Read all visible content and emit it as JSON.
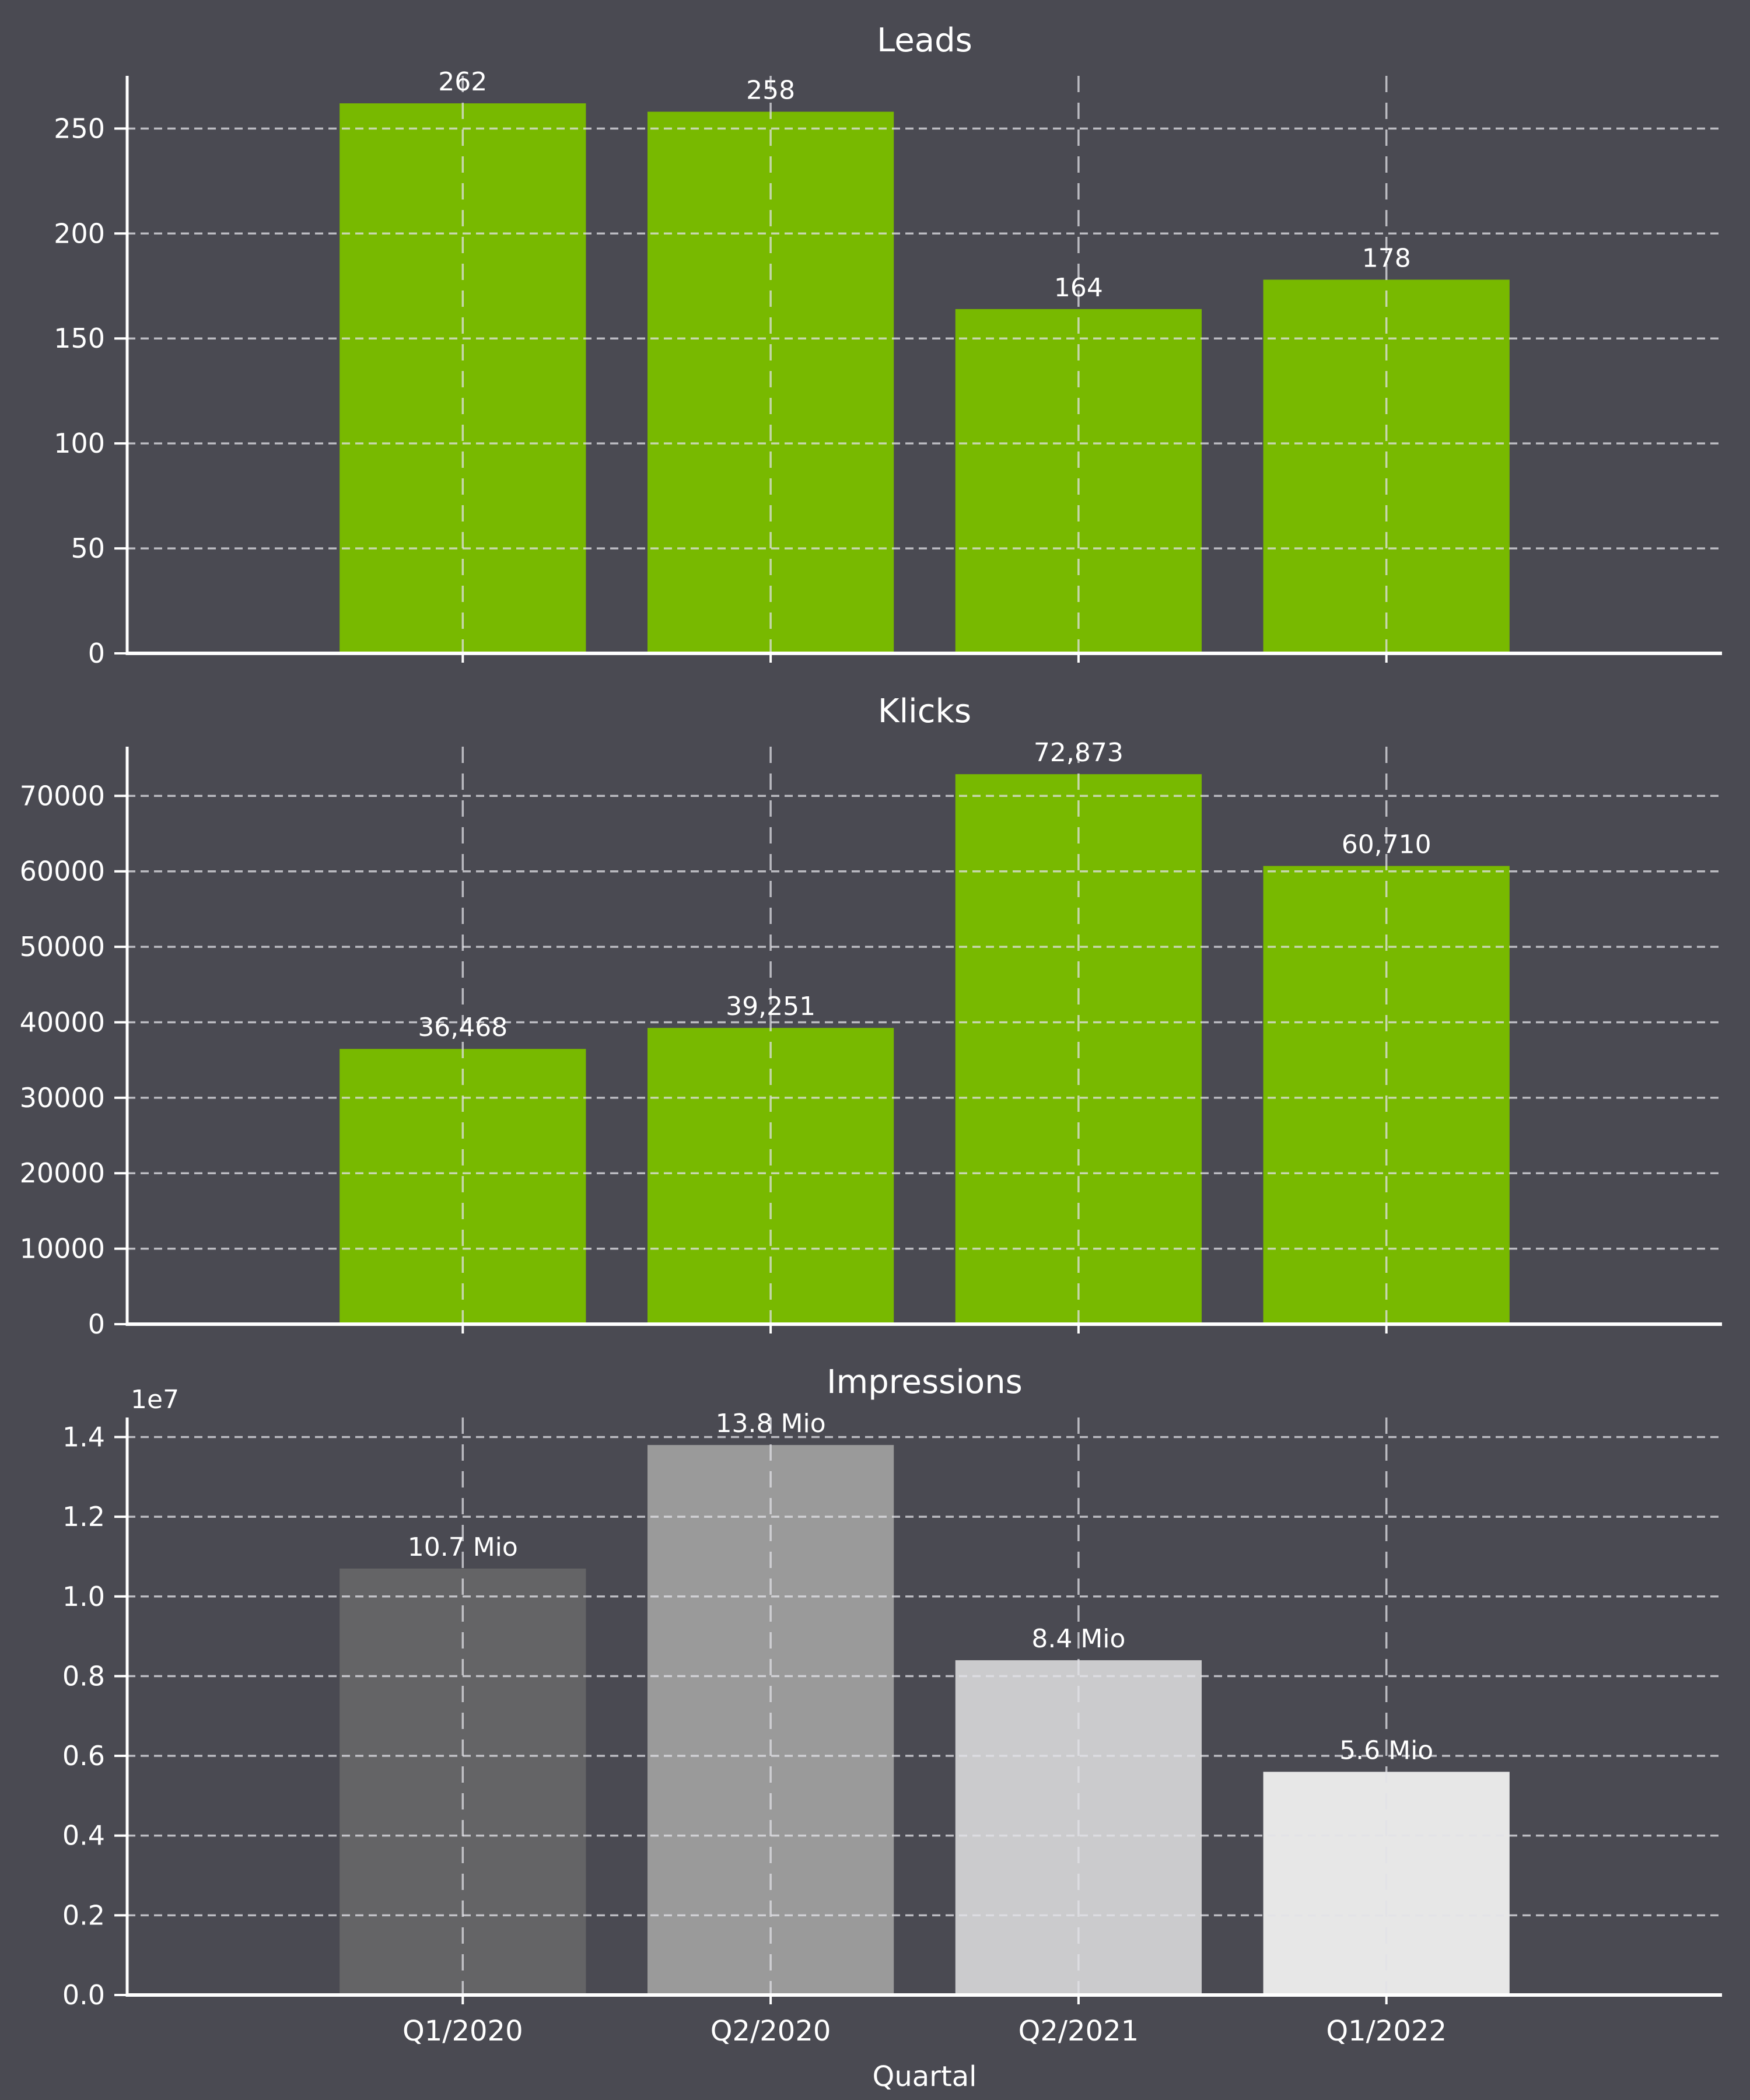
{
  "figure": {
    "background_color": "#4a4a52",
    "text_color": "#ffffff",
    "axis_color": "#ffffff",
    "grid_color": "#e2e2e8",
    "accent_green": "#78b900"
  },
  "x_axis": {
    "label": "Quartal",
    "categories": [
      "Q1/2020",
      "Q2/2020",
      "Q2/2021",
      "Q1/2022"
    ]
  },
  "chart_data": [
    {
      "type": "bar",
      "title": "Leads",
      "categories": [
        "Q1/2020",
        "Q2/2020",
        "Q2/2021",
        "Q1/2022"
      ],
      "values": [
        262,
        258,
        164,
        178
      ],
      "value_labels": [
        "262",
        "258",
        "164",
        "178"
      ],
      "bar_colors": [
        "#78b900",
        "#78b900",
        "#78b900",
        "#78b900"
      ],
      "yticks": [
        0,
        50,
        100,
        150,
        200,
        250
      ],
      "ytick_labels": [
        "0",
        "50",
        "100",
        "150",
        "200",
        "250"
      ],
      "ylim": [
        0,
        275.1
      ],
      "grid": true,
      "legend": "none",
      "show_x_tick_labels": false
    },
    {
      "type": "bar",
      "title": "Klicks",
      "categories": [
        "Q1/2020",
        "Q2/2020",
        "Q2/2021",
        "Q1/2022"
      ],
      "values": [
        36468,
        39251,
        72873,
        60710
      ],
      "value_labels": [
        "36,468",
        "39,251",
        "72,873",
        "60,710"
      ],
      "bar_colors": [
        "#78b900",
        "#78b900",
        "#78b900",
        "#78b900"
      ],
      "yticks": [
        0,
        10000,
        20000,
        30000,
        40000,
        50000,
        60000,
        70000
      ],
      "ytick_labels": [
        "0",
        "10000",
        "20000",
        "30000",
        "40000",
        "50000",
        "60000",
        "70000"
      ],
      "ylim": [
        0,
        76517
      ],
      "grid": true,
      "legend": "none",
      "show_x_tick_labels": false
    },
    {
      "type": "bar",
      "title": "Impressions",
      "categories": [
        "Q1/2020",
        "Q2/2020",
        "Q2/2021",
        "Q1/2022"
      ],
      "values": [
        10700000,
        13800000,
        8400000,
        5600000
      ],
      "value_labels": [
        "10.7 Mio",
        "13.8 Mio",
        "8.4 Mio",
        "5.6 Mio"
      ],
      "bar_colors": [
        "#646466",
        "#9a9a9a",
        "#cbcbcd",
        "#e7e7e7"
      ],
      "yticks": [
        0,
        2000000,
        4000000,
        6000000,
        8000000,
        10000000,
        12000000,
        14000000
      ],
      "ytick_labels": [
        "0.0",
        "0.2",
        "0.4",
        "0.6",
        "0.8",
        "1.0",
        "1.2",
        "1.4"
      ],
      "ylim": [
        0,
        14490000
      ],
      "offset_text": "1e7",
      "xlabel": "Quartal",
      "grid": true,
      "legend": "none",
      "show_x_tick_labels": true
    }
  ]
}
